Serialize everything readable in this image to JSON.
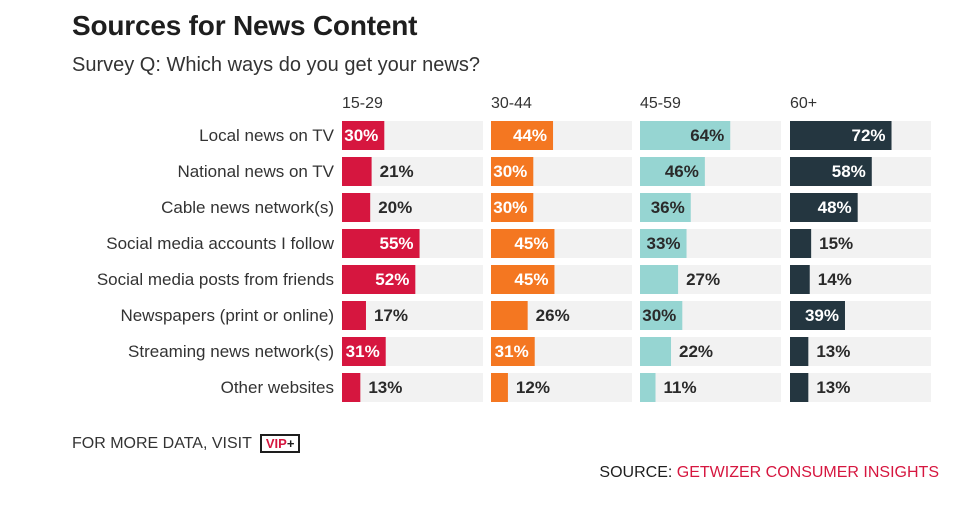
{
  "header": {
    "title": "Sources for News Content",
    "subtitle": "Survey Q: Which ways do you get your news?"
  },
  "chart_data": {
    "type": "bar",
    "title": "Sources for News Content",
    "subtitle": "Survey Q: Which ways do you get your news?",
    "categories": [
      "Local news on TV",
      "National news on TV",
      "Cable news network(s)",
      "Social media accounts I follow",
      "Social media posts from friends",
      "Newspapers (print or online)",
      "Streaming news network(s)",
      "Other websites"
    ],
    "series": [
      {
        "name": "15-29",
        "color": "#d6163f",
        "values": [
          30,
          21,
          20,
          55,
          52,
          17,
          31,
          13
        ]
      },
      {
        "name": "30-44",
        "color": "#f47721",
        "values": [
          44,
          30,
          30,
          45,
          45,
          26,
          31,
          12
        ]
      },
      {
        "name": "45-59",
        "color": "#96d5d2",
        "values": [
          64,
          46,
          36,
          33,
          27,
          30,
          22,
          11
        ]
      },
      {
        "name": "60+",
        "color": "#243640",
        "values": [
          72,
          58,
          48,
          15,
          14,
          39,
          13,
          13
        ]
      }
    ],
    "ylim": [
      0,
      100
    ],
    "value_suffix": "%",
    "track_color": "#f2f2f2"
  },
  "footer": {
    "more_data": "FOR MORE DATA, VISIT",
    "vip_label": "VIP",
    "vip_plus": "+",
    "source_label": "SOURCE: ",
    "source_name": "GETWIZER CONSUMER INSIGHTS"
  }
}
